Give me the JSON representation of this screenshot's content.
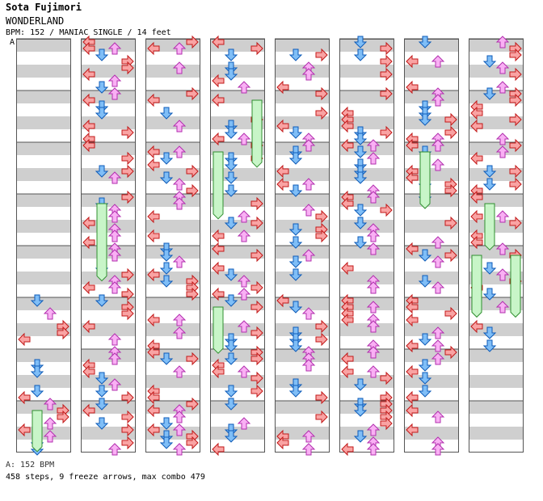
{
  "song": {
    "artist": "Sota Fujimori",
    "title": "WONDERLAND",
    "info": "BPM: 152 / MANIAC SINGLE / 14 feet",
    "section_marker": "A"
  },
  "footer": {
    "bpm_legend": "A: 152 BPM",
    "summary": "458 steps, 9 freeze arrows, max combo 479"
  },
  "chart": {
    "columns": 8,
    "measures_per_column": 8,
    "first_measure_filled": 5,
    "colors": {
      "left": "#f9a3a3",
      "left_stroke": "#c21818",
      "down": "#7fbef7",
      "down_stroke": "#0e5bb8",
      "up": "#f9b0f4",
      "up_stroke": "#b22fae",
      "freeze": "#c8f5c8",
      "freeze_stroke": "#2f8f2f",
      "stripe": "#cfcfcf",
      "border": "#555555"
    },
    "icons": [
      "left-arrow-icon",
      "down-arrow-icon",
      "up-arrow-icon",
      "right-arrow-icon"
    ]
  }
}
